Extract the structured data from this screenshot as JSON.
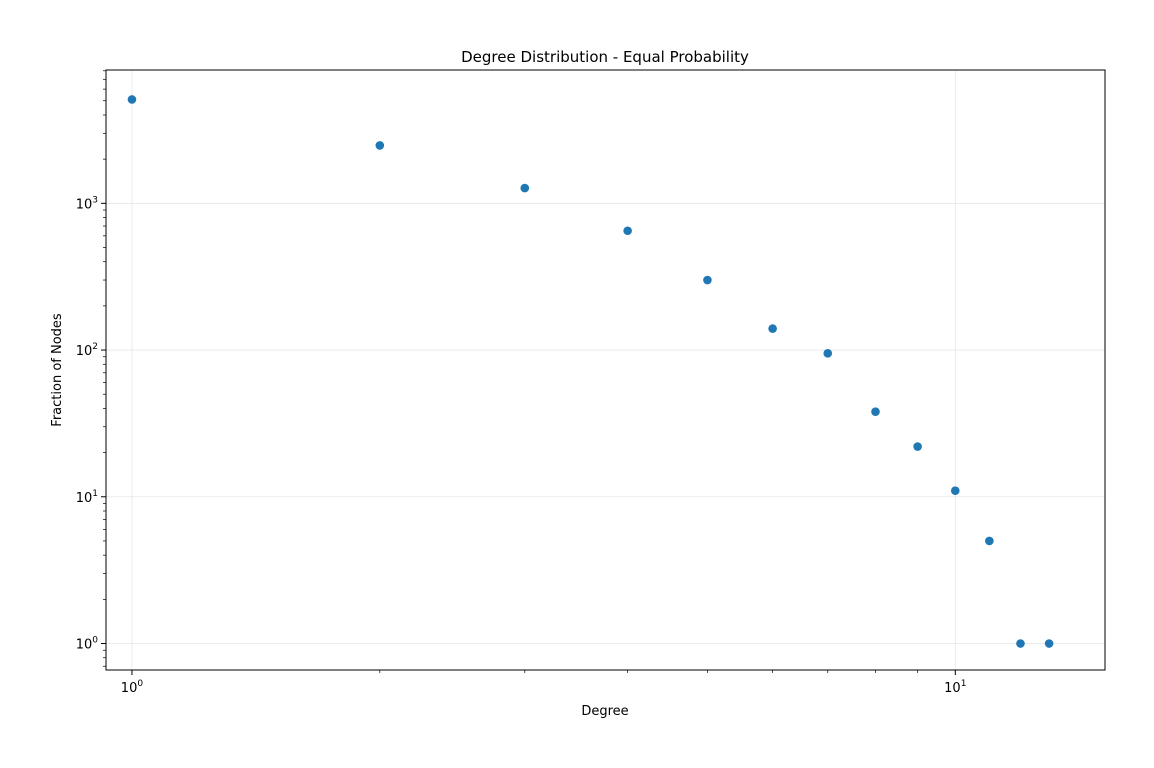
{
  "chart_data": {
    "type": "scatter",
    "title": "Degree Distribution -   Equal Probability",
    "xlabel": "Degree",
    "ylabel": "Fraction of Nodes",
    "xscale": "log",
    "yscale": "log",
    "xlim": [
      0.93,
      15.2
    ],
    "ylim": [
      0.66,
      8100
    ],
    "grid": true,
    "point_color": "#1f77b4",
    "x_ticks": [
      {
        "base": "10",
        "exp": "0",
        "value": 1
      },
      {
        "base": "10",
        "exp": "1",
        "value": 10
      }
    ],
    "y_ticks": [
      {
        "base": "10",
        "exp": "0",
        "value": 1
      },
      {
        "base": "10",
        "exp": "1",
        "value": 10
      },
      {
        "base": "10",
        "exp": "2",
        "value": 100
      },
      {
        "base": "10",
        "exp": "3",
        "value": 1000
      }
    ],
    "points": [
      {
        "x": 1,
        "y": 5100
      },
      {
        "x": 2,
        "y": 2480
      },
      {
        "x": 3,
        "y": 1270
      },
      {
        "x": 4,
        "y": 650
      },
      {
        "x": 5,
        "y": 300
      },
      {
        "x": 6,
        "y": 140
      },
      {
        "x": 7,
        "y": 95
      },
      {
        "x": 8,
        "y": 38
      },
      {
        "x": 9,
        "y": 22
      },
      {
        "x": 10,
        "y": 11
      },
      {
        "x": 11,
        "y": 5
      },
      {
        "x": 12,
        "y": 1
      },
      {
        "x": 13,
        "y": 1
      }
    ]
  }
}
